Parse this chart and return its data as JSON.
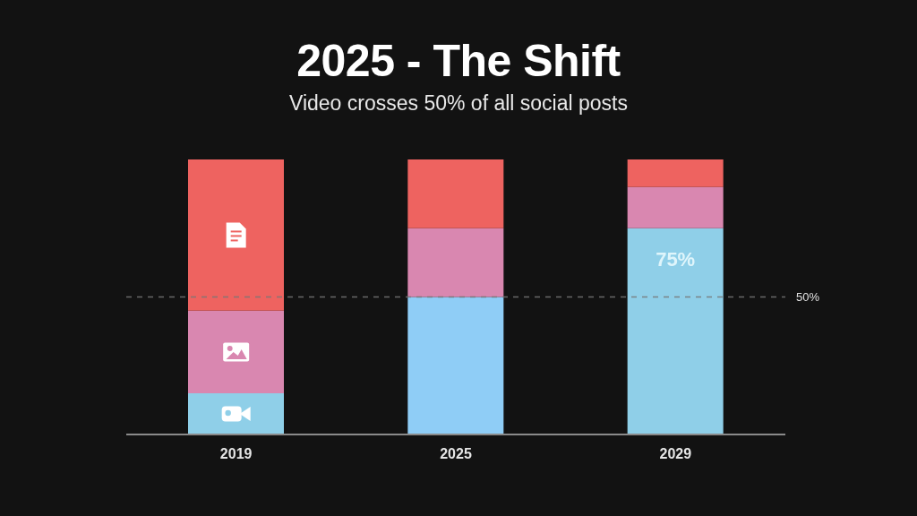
{
  "chart_data": {
    "type": "bar",
    "title": "2025 - The Shift",
    "subtitle": "Video crosses 50% of all social posts",
    "categories": [
      "2019",
      "2025",
      "2029"
    ],
    "stacked": true,
    "ylim": [
      0,
      100
    ],
    "tick_labels": "x",
    "series": [
      {
        "color": "#8fcfe8",
        "colors": [
          "#8fcfe8",
          "#8fcdf6",
          "#8fcfe8"
        ],
        "values": [
          15,
          50,
          75
        ],
        "value_labels": [
          null,
          null,
          "75%"
        ]
      },
      {
        "color": "#d987b0",
        "values": [
          30,
          25,
          15
        ]
      },
      {
        "color": "#ee6360",
        "values": [
          55,
          25,
          10
        ]
      }
    ],
    "ref_lines": [
      {
        "axis": "y",
        "value": 50,
        "label": "50%",
        "color": "#777777",
        "line_style": "dashed"
      }
    ]
  }
}
